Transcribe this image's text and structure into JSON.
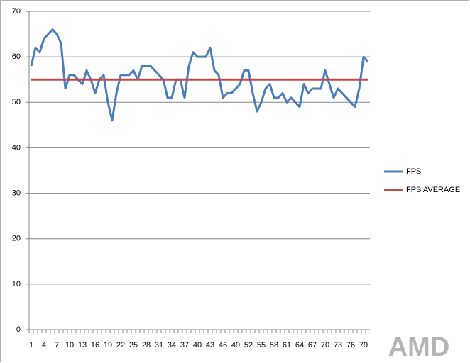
{
  "chart_data": {
    "type": "line",
    "categories": [
      1,
      null,
      null,
      4,
      null,
      null,
      7,
      null,
      null,
      10,
      null,
      null,
      13,
      null,
      null,
      16,
      null,
      null,
      19,
      null,
      null,
      22,
      null,
      null,
      25,
      null,
      null,
      28,
      null,
      null,
      31,
      null,
      null,
      34,
      null,
      null,
      37,
      null,
      null,
      40,
      null,
      null,
      43,
      null,
      null,
      46,
      null,
      null,
      49,
      null,
      null,
      52,
      null,
      null,
      55,
      null,
      null,
      58,
      null,
      null,
      61,
      null,
      null,
      64,
      null,
      null,
      67,
      null,
      null,
      70,
      null,
      null,
      73,
      null,
      null,
      76,
      null,
      null,
      79,
      null
    ],
    "series": [
      {
        "name": "FPS",
        "color": "#4a7ebb",
        "values": [
          58,
          62,
          61,
          64,
          65,
          66,
          65,
          63,
          53,
          56,
          56,
          55,
          54,
          57,
          55,
          52,
          55,
          56,
          50,
          46,
          52,
          56,
          56,
          56,
          57,
          55,
          58,
          58,
          58,
          57,
          56,
          55,
          51,
          51,
          55,
          55,
          51,
          58,
          61,
          60,
          60,
          60,
          62,
          57,
          56,
          51,
          52,
          52,
          53,
          54,
          57,
          57,
          52,
          48,
          50,
          53,
          54,
          51,
          51,
          52,
          50,
          51,
          50,
          49,
          54,
          52,
          53,
          53,
          53,
          57,
          54,
          51,
          53,
          52,
          51,
          50,
          49,
          53,
          60,
          59
        ]
      },
      {
        "name": "FPS AVERAGE",
        "color": "#be4b48",
        "values": [
          55,
          55,
          55,
          55,
          55,
          55,
          55,
          55,
          55,
          55,
          55,
          55,
          55,
          55,
          55,
          55,
          55,
          55,
          55,
          55,
          55,
          55,
          55,
          55,
          55,
          55,
          55,
          55,
          55,
          55,
          55,
          55,
          55,
          55,
          55,
          55,
          55,
          55,
          55,
          55,
          55,
          55,
          55,
          55,
          55,
          55,
          55,
          55,
          55,
          55,
          55,
          55,
          55,
          55,
          55,
          55,
          55,
          55,
          55,
          55,
          55,
          55,
          55,
          55,
          55,
          55,
          55,
          55,
          55,
          55,
          55,
          55,
          55,
          55,
          55,
          55,
          55,
          55,
          55,
          55
        ]
      }
    ],
    "ylim": [
      0,
      70
    ],
    "yticks": [
      0,
      10,
      20,
      30,
      40,
      50,
      60,
      70
    ],
    "grid": true,
    "legend": "right",
    "watermark": "AMD"
  }
}
